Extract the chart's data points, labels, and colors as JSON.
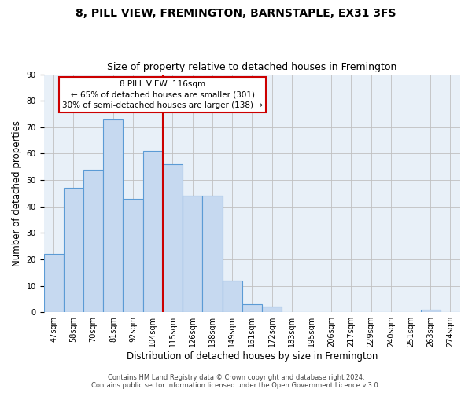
{
  "title": "8, PILL VIEW, FREMINGTON, BARNSTAPLE, EX31 3FS",
  "subtitle": "Size of property relative to detached houses in Fremington",
  "xlabel": "Distribution of detached houses by size in Fremington",
  "ylabel": "Number of detached properties",
  "bin_labels": [
    "47sqm",
    "58sqm",
    "70sqm",
    "81sqm",
    "92sqm",
    "104sqm",
    "115sqm",
    "126sqm",
    "138sqm",
    "149sqm",
    "161sqm",
    "172sqm",
    "183sqm",
    "195sqm",
    "206sqm",
    "217sqm",
    "229sqm",
    "240sqm",
    "251sqm",
    "263sqm",
    "274sqm"
  ],
  "bar_heights": [
    22,
    47,
    54,
    73,
    43,
    61,
    56,
    44,
    44,
    12,
    3,
    2,
    0,
    0,
    0,
    0,
    0,
    0,
    0,
    1,
    0
  ],
  "bar_color": "#c6d9f0",
  "bar_edge_color": "#5b9bd5",
  "vline_x_index": 6,
  "vline_color": "#cc0000",
  "ylim": [
    0,
    90
  ],
  "yticks": [
    0,
    10,
    20,
    30,
    40,
    50,
    60,
    70,
    80,
    90
  ],
  "annotation_text_line1": "8 PILL VIEW: 116sqm",
  "annotation_text_line2": "← 65% of detached houses are smaller (301)",
  "annotation_text_line3": "30% of semi-detached houses are larger (138) →",
  "annotation_box_facecolor": "#ffffff",
  "annotation_box_edgecolor": "#cc0000",
  "footer_line1": "Contains HM Land Registry data © Crown copyright and database right 2024.",
  "footer_line2": "Contains public sector information licensed under the Open Government Licence v.3.0.",
  "title_fontsize": 10,
  "subtitle_fontsize": 9,
  "axis_label_fontsize": 8.5,
  "tick_fontsize": 7,
  "annotation_fontsize": 7.5,
  "footer_fontsize": 6,
  "background_color": "#ffffff",
  "axes_facecolor": "#e8f0f8",
  "grid_color": "#c0c0c0"
}
